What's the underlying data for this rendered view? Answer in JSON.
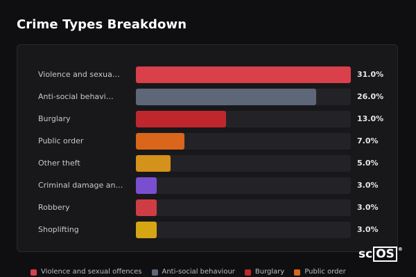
{
  "title": "Crime Types Breakdown",
  "chart_data": {
    "type": "bar",
    "orientation": "horizontal",
    "categories": [
      "Violence and sexua…",
      "Anti-social behavi…",
      "Burglary",
      "Public order",
      "Other theft",
      "Criminal damage an…",
      "Robbery",
      "Shoplifting"
    ],
    "values": [
      31.0,
      26.0,
      13.0,
      7.0,
      5.0,
      3.0,
      3.0,
      3.0
    ],
    "value_labels": [
      "31.0%",
      "26.0%",
      "13.0%",
      "7.0%",
      "5.0%",
      "3.0%",
      "3.0%",
      "3.0%"
    ],
    "colors": [
      "#d9404a",
      "#5d6778",
      "#c0272d",
      "#d9661a",
      "#d4921a",
      "#7a4fcf",
      "#cf3d44",
      "#d6a514"
    ],
    "xlim": [
      0,
      31.0
    ],
    "legend": {
      "position": "bottom",
      "items": [
        {
          "label": "Violence and sexual offences",
          "color": "#d9404a"
        },
        {
          "label": "Anti-social behaviour",
          "color": "#5d6778"
        },
        {
          "label": "Burglary",
          "color": "#c0272d"
        },
        {
          "label": "Public order",
          "color": "#d9661a"
        }
      ]
    }
  },
  "watermark": "scOS"
}
